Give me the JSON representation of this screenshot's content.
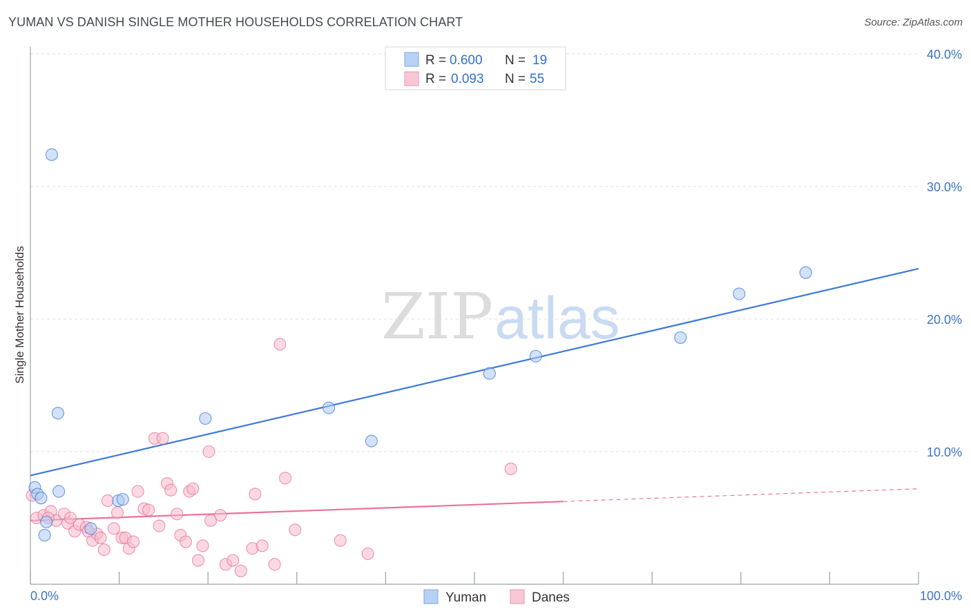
{
  "header": {
    "title": "YUMAN VS DANISH SINGLE MOTHER HOUSEHOLDS CORRELATION CHART",
    "source": "Source: ZipAtlas.com"
  },
  "watermark": {
    "zip": "ZIP",
    "atlas": "atlas"
  },
  "legend": {
    "r_label": "R =",
    "n_label": "N =",
    "rows": [
      {
        "name": "Yuman",
        "r": "0.600",
        "n": "19",
        "color": "#a9c8f0"
      },
      {
        "name": "Danes",
        "r": "0.093",
        "n": "55",
        "color": "#f7b9ca"
      }
    ]
  },
  "bottom_legend": {
    "items": [
      "Yuman",
      "Danes"
    ]
  },
  "chart_data": {
    "type": "scatter",
    "title": "YUMAN VS DANISH SINGLE MOTHER HOUSEHOLDS CORRELATION CHART",
    "xlabel": "",
    "ylabel": "Single Mother Households",
    "xlim": [
      0,
      100
    ],
    "ylim": [
      0,
      40
    ],
    "x_tick_labels": [
      "0.0%",
      "100.0%"
    ],
    "y_ticks": [
      10,
      20,
      30,
      40
    ],
    "y_tick_labels": [
      "10.0%",
      "20.0%",
      "30.0%",
      "40.0%"
    ],
    "grid": true,
    "series": [
      {
        "name": "Yuman",
        "color": "#3b78d8",
        "fill": "#aecbf2",
        "points": [
          [
            0.5,
            7.3
          ],
          [
            0.8,
            6.8
          ],
          [
            1.2,
            6.5
          ],
          [
            1.6,
            3.7
          ],
          [
            1.8,
            4.7
          ],
          [
            2.4,
            32.4
          ],
          [
            3.1,
            12.9
          ],
          [
            3.2,
            7.0
          ],
          [
            6.8,
            4.2
          ],
          [
            9.9,
            6.3
          ],
          [
            10.4,
            6.4
          ],
          [
            19.7,
            12.5
          ],
          [
            33.6,
            13.3
          ],
          [
            38.4,
            10.8
          ],
          [
            51.7,
            15.9
          ],
          [
            56.9,
            17.2
          ],
          [
            73.2,
            18.6
          ],
          [
            79.8,
            21.9
          ],
          [
            87.3,
            23.5
          ]
        ],
        "trend": {
          "x": [
            0,
            100
          ],
          "y": [
            8.2,
            23.8
          ],
          "dashed_from": null
        }
      },
      {
        "name": "Danes",
        "color": "#e8729a",
        "fill": "#f7b9ca",
        "points": [
          [
            0.2,
            6.7
          ],
          [
            0.7,
            5.0
          ],
          [
            1.5,
            5.2
          ],
          [
            2.3,
            5.5
          ],
          [
            2.9,
            4.8
          ],
          [
            3.8,
            5.3
          ],
          [
            4.2,
            4.6
          ],
          [
            5.0,
            4.0
          ],
          [
            5.5,
            4.5
          ],
          [
            6.3,
            4.3
          ],
          [
            7.0,
            3.3
          ],
          [
            7.5,
            3.8
          ],
          [
            7.9,
            3.5
          ],
          [
            8.3,
            2.6
          ],
          [
            8.7,
            6.3
          ],
          [
            9.4,
            4.2
          ],
          [
            9.8,
            5.4
          ],
          [
            10.3,
            3.5
          ],
          [
            10.7,
            3.5
          ],
          [
            11.1,
            2.7
          ],
          [
            11.6,
            3.2
          ],
          [
            12.1,
            7.0
          ],
          [
            12.8,
            5.7
          ],
          [
            13.3,
            5.6
          ],
          [
            14.0,
            11.0
          ],
          [
            14.5,
            4.4
          ],
          [
            14.9,
            11.0
          ],
          [
            15.4,
            7.6
          ],
          [
            15.8,
            7.1
          ],
          [
            16.5,
            5.3
          ],
          [
            16.9,
            3.7
          ],
          [
            17.5,
            3.2
          ],
          [
            17.9,
            7.0
          ],
          [
            18.3,
            7.2
          ],
          [
            18.9,
            1.8
          ],
          [
            19.4,
            2.9
          ],
          [
            20.1,
            10.0
          ],
          [
            20.3,
            4.8
          ],
          [
            21.4,
            5.2
          ],
          [
            22.0,
            1.5
          ],
          [
            22.8,
            1.8
          ],
          [
            23.7,
            1.0
          ],
          [
            25.0,
            2.7
          ],
          [
            25.3,
            6.8
          ],
          [
            26.1,
            2.9
          ],
          [
            27.5,
            1.5
          ],
          [
            28.1,
            18.1
          ],
          [
            28.7,
            8.0
          ],
          [
            29.8,
            4.1
          ],
          [
            34.9,
            3.3
          ],
          [
            38.0,
            2.3
          ],
          [
            54.1,
            8.7
          ],
          [
            2.0,
            5.0
          ],
          [
            4.5,
            5.0
          ],
          [
            6.5,
            4.0
          ]
        ],
        "trend": {
          "x": [
            0,
            100
          ],
          "y": [
            4.8,
            7.2
          ],
          "solid_until_x": 60
        }
      }
    ]
  }
}
